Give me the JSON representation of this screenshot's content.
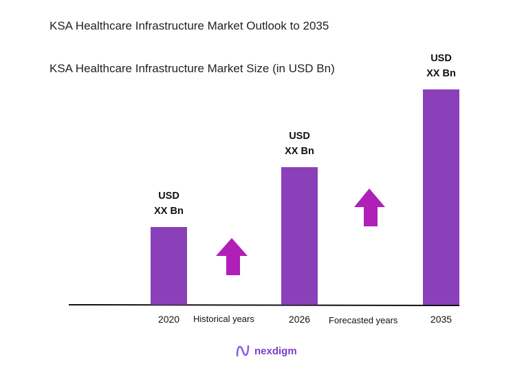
{
  "chart_data": {
    "type": "bar",
    "title": "KSA Healthcare Infrastructure Market Outlook to 2035",
    "subtitle": "KSA Healthcare Infrastructure Market Size (in USD Bn)",
    "categories": [
      "2020",
      "2026",
      "2035"
    ],
    "values": [
      1.0,
      1.77,
      2.77
    ],
    "data_labels": [
      "USD XX Bn",
      "USD XX Bn",
      "USD XX Bn"
    ],
    "annotations": [
      "Historical years",
      "Forecasted years"
    ],
    "xlabel": "",
    "ylabel": "",
    "grid": false,
    "colors": {
      "bar": "#8a40b8",
      "arrow": "#b01fb8",
      "axis": "#111111"
    }
  },
  "labels": {
    "usd": "USD",
    "xx": "XX Bn"
  },
  "logo": {
    "text": "nexdigm",
    "color": "#7a3fc8"
  }
}
